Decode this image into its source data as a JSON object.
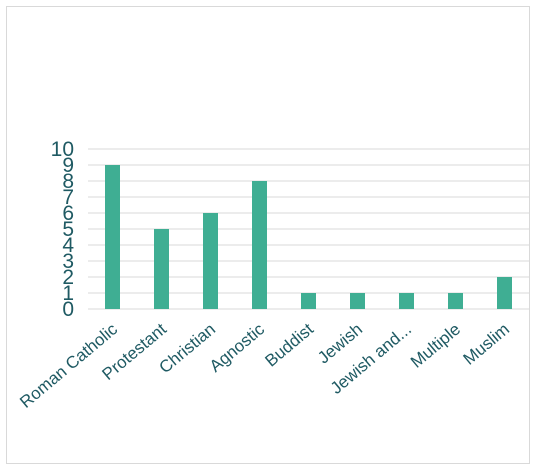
{
  "chart_data": {
    "type": "bar",
    "categories": [
      "Roman Catholic",
      "Protestant",
      "Christian",
      "Agnostic",
      "Buddist",
      "Jewish",
      "Jewish and...",
      "Multiple",
      "Muslim"
    ],
    "values": [
      9,
      5,
      6,
      8,
      1,
      1,
      1,
      1,
      2
    ],
    "ylim": [
      0,
      10
    ],
    "yticks": [
      0,
      1,
      2,
      3,
      4,
      5,
      6,
      7,
      8,
      9,
      10
    ],
    "grid": true,
    "legend": "none",
    "colors": {
      "bar": "#3fae93",
      "grid": "#d9d9d9",
      "text": "#1f5a63"
    }
  }
}
